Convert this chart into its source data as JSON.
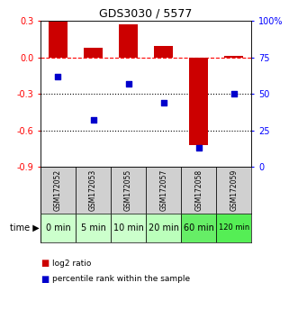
{
  "title": "GDS3030 / 5577",
  "samples": [
    "GSM172052",
    "GSM172053",
    "GSM172055",
    "GSM172057",
    "GSM172058",
    "GSM172059"
  ],
  "time_labels": [
    "0 min",
    "5 min",
    "10 min",
    "20 min",
    "60 min",
    "120 min"
  ],
  "log2_ratio": [
    0.29,
    0.08,
    0.27,
    0.09,
    -0.72,
    0.01
  ],
  "percentile_rank": [
    62,
    32,
    57,
    44,
    13,
    50
  ],
  "bar_color_red": "#cc0000",
  "bar_color_blue": "#0000cc",
  "ylim_left": [
    -0.9,
    0.3
  ],
  "ylim_right": [
    0,
    100
  ],
  "yticks_left": [
    0.3,
    0.0,
    -0.3,
    -0.6,
    -0.9
  ],
  "yticks_right": [
    100,
    75,
    50,
    25,
    0
  ],
  "dotted_lines": [
    -0.3,
    -0.6
  ],
  "dashed_line": 0.0,
  "gray_bg": "#d0d0d0",
  "time_row_colors": [
    "#ccffcc",
    "#ccffcc",
    "#ccffcc",
    "#bbffbb",
    "#66ee66",
    "#55ee55"
  ],
  "legend_red_label": "log2 ratio",
  "legend_blue_label": "percentile rank within the sample"
}
